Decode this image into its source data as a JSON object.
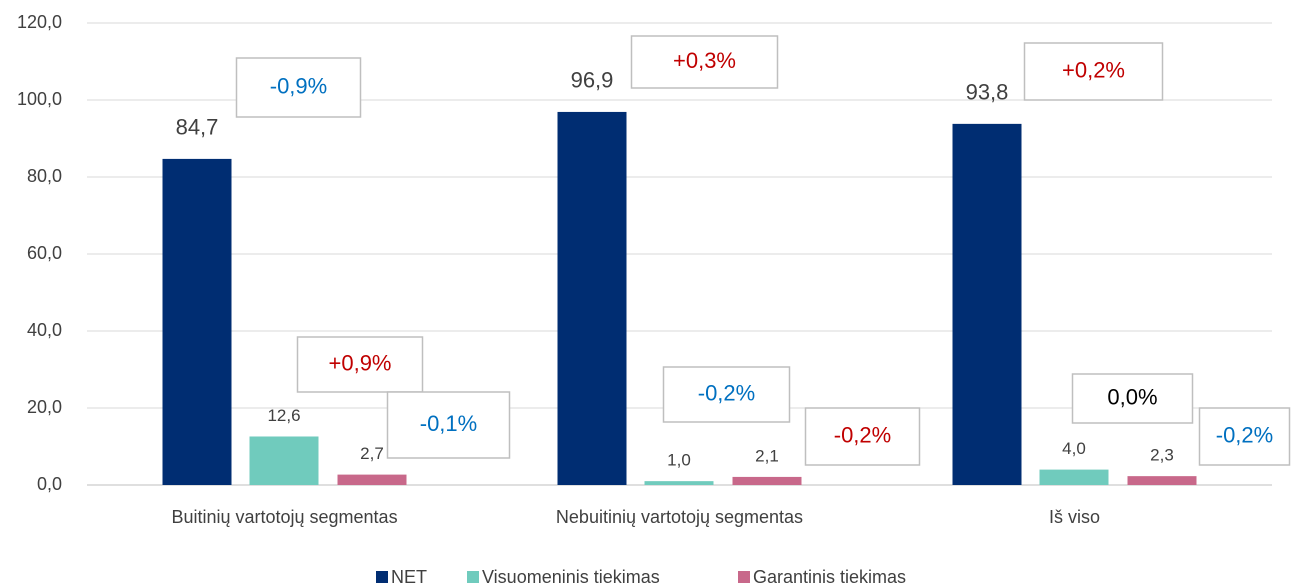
{
  "chart_data": {
    "type": "bar",
    "categories": [
      "Buitinių vartotojų segmentas",
      "Nebuitinių vartotojų segmentas",
      "Iš viso"
    ],
    "series": [
      {
        "name": "NET",
        "color": "#002d72",
        "values": [
          84.7,
          96.9,
          93.8
        ],
        "value_labels": [
          "84,7",
          "96,9",
          "93,8"
        ],
        "annotations": [
          {
            "text": "-0,9%",
            "color": "#0070c0"
          },
          {
            "text": "+0,3%",
            "color": "#c00000"
          },
          {
            "text": "+0,2%",
            "color": "#c00000"
          }
        ]
      },
      {
        "name": "Visuomeninis tiekimas",
        "color": "#70cbbd",
        "values": [
          12.6,
          1.0,
          4.0
        ],
        "value_labels": [
          "12,6",
          "1,0",
          "4,0"
        ],
        "annotations": [
          {
            "text": "+0,9%",
            "color": "#c00000"
          },
          {
            "text": "-0,2%",
            "color": "#0070c0"
          },
          {
            "text": "0,0%",
            "color": "#000000"
          }
        ]
      },
      {
        "name": "Garantinis tiekimas",
        "color": "#c8688a",
        "values": [
          2.7,
          2.1,
          2.3
        ],
        "value_labels": [
          "2,7",
          "2,1",
          "2,3"
        ],
        "annotations": [
          {
            "text": "-0,1%",
            "color": "#0070c0"
          },
          {
            "text": "-0,2%",
            "color": "#c00000"
          },
          {
            "text": "-0,2%",
            "color": "#0070c0"
          }
        ]
      }
    ],
    "ylim": [
      0,
      120
    ],
    "yticks": [
      {
        "value": 0,
        "label": "0,0"
      },
      {
        "value": 20,
        "label": "20,0"
      },
      {
        "value": 40,
        "label": "40,0"
      },
      {
        "value": 60,
        "label": "60,0"
      },
      {
        "value": 80,
        "label": "80,0"
      },
      {
        "value": 100,
        "label": "100,0"
      },
      {
        "value": 120,
        "label": "120,0"
      }
    ],
    "grid": true,
    "legend": "bottom"
  }
}
